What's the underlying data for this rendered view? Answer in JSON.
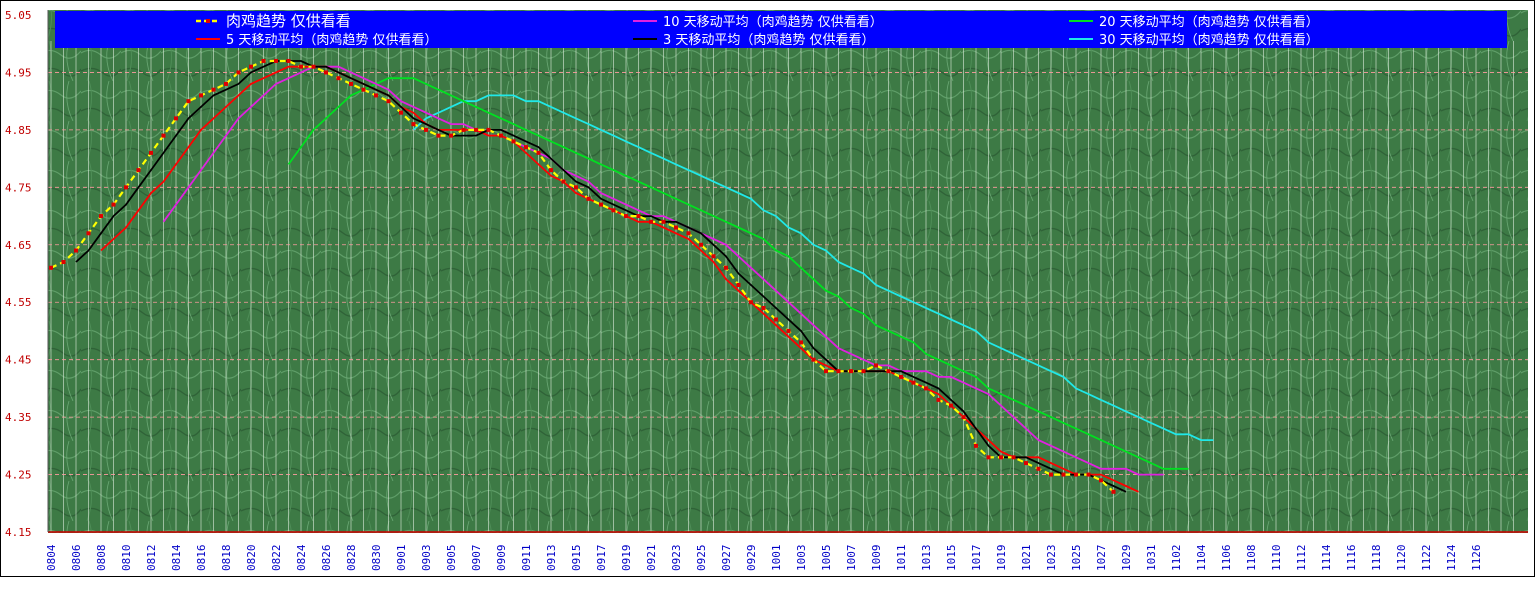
{
  "chart_data": {
    "type": "line",
    "ylim": [
      4.15,
      5.05
    ],
    "y_ticks": [
      "5.05",
      "4.95",
      "4.85",
      "4.75",
      "4.65",
      "4.55",
      "4.45",
      "4.35",
      "4.25",
      "4.15"
    ],
    "x_tick_labels": [
      "0804",
      "0806",
      "0808",
      "0810",
      "0812",
      "0814",
      "0816",
      "0818",
      "0820",
      "0822",
      "0824",
      "0826",
      "0828",
      "0830",
      "0901",
      "0903",
      "0905",
      "0907",
      "0909",
      "0911",
      "0913",
      "0915",
      "0917",
      "0919",
      "0921",
      "0923",
      "0925",
      "0927",
      "0929",
      "1001",
      "1003",
      "1005",
      "1007",
      "1009",
      "1011",
      "1013",
      "1015",
      "1017",
      "1019",
      "1021",
      "1023",
      "1025",
      "1027",
      "1029",
      "1031",
      "1102",
      "1104",
      "1106",
      "1108",
      "1110",
      "1112",
      "1114",
      "1116",
      "1118",
      "1120",
      "1122",
      "1124",
      "1126"
    ],
    "grid": true,
    "legend_position": "top",
    "series": [
      {
        "name": "肉鸡趋势 仅供看看",
        "color": "#ffff00",
        "style": "dashed-markers",
        "x_start": 0,
        "values": [
          4.61,
          4.62,
          4.64,
          4.67,
          4.7,
          4.72,
          4.75,
          4.78,
          4.81,
          4.84,
          4.87,
          4.9,
          4.91,
          4.92,
          4.93,
          4.95,
          4.96,
          4.97,
          4.97,
          4.97,
          4.96,
          4.96,
          4.95,
          4.94,
          4.93,
          4.92,
          4.91,
          4.9,
          4.88,
          4.86,
          4.85,
          4.84,
          4.84,
          4.85,
          4.85,
          4.85,
          4.84,
          4.83,
          4.82,
          4.81,
          4.78,
          4.76,
          4.75,
          4.73,
          4.72,
          4.71,
          4.7,
          4.7,
          4.69,
          4.69,
          4.68,
          4.67,
          4.65,
          4.63,
          4.61,
          4.58,
          4.55,
          4.54,
          4.52,
          4.5,
          4.48,
          4.45,
          4.43,
          4.43,
          4.43,
          4.43,
          4.44,
          4.43,
          4.42,
          4.41,
          4.4,
          4.38,
          4.37,
          4.35,
          4.3,
          4.28,
          4.28,
          4.28,
          4.27,
          4.26,
          4.25,
          4.25,
          4.25,
          4.25,
          4.24,
          4.22
        ]
      },
      {
        "name": "3 天移动平均（肉鸡趋势 仅供看看）",
        "color": "#000000",
        "style": "solid",
        "x_start": 2,
        "values": [
          4.62,
          4.64,
          4.67,
          4.7,
          4.72,
          4.75,
          4.78,
          4.81,
          4.84,
          4.87,
          4.89,
          4.91,
          4.92,
          4.93,
          4.95,
          4.96,
          4.97,
          4.97,
          4.97,
          4.96,
          4.96,
          4.95,
          4.94,
          4.93,
          4.92,
          4.91,
          4.89,
          4.87,
          4.86,
          4.85,
          4.84,
          4.84,
          4.84,
          4.85,
          4.85,
          4.84,
          4.83,
          4.82,
          4.8,
          4.78,
          4.76,
          4.75,
          4.73,
          4.72,
          4.71,
          4.7,
          4.7,
          4.69,
          4.69,
          4.68,
          4.67,
          4.65,
          4.63,
          4.6,
          4.58,
          4.56,
          4.54,
          4.52,
          4.5,
          4.47,
          4.45,
          4.43,
          4.43,
          4.43,
          4.43,
          4.43,
          4.43,
          4.42,
          4.41,
          4.4,
          4.38,
          4.36,
          4.33,
          4.3,
          4.28,
          4.28,
          4.28,
          4.27,
          4.26,
          4.25,
          4.25,
          4.25,
          4.24,
          4.23,
          4.22
        ]
      },
      {
        "name": "5 天移动平均（肉鸡趋势 仅供看看）",
        "color": "#ff0000",
        "style": "solid",
        "x_start": 4,
        "values": [
          4.64,
          4.66,
          4.68,
          4.71,
          4.74,
          4.76,
          4.79,
          4.82,
          4.85,
          4.87,
          4.89,
          4.91,
          4.93,
          4.94,
          4.95,
          4.96,
          4.96,
          4.96,
          4.96,
          4.95,
          4.94,
          4.93,
          4.92,
          4.91,
          4.89,
          4.88,
          4.86,
          4.85,
          4.85,
          4.85,
          4.85,
          4.84,
          4.84,
          4.83,
          4.81,
          4.79,
          4.77,
          4.76,
          4.74,
          4.73,
          4.72,
          4.71,
          4.7,
          4.69,
          4.69,
          4.68,
          4.67,
          4.66,
          4.64,
          4.62,
          4.59,
          4.57,
          4.55,
          4.53,
          4.51,
          4.49,
          4.47,
          4.45,
          4.44,
          4.43,
          4.43,
          4.43,
          4.43,
          4.43,
          4.42,
          4.41,
          4.4,
          4.39,
          4.37,
          4.35,
          4.33,
          4.31,
          4.29,
          4.28,
          4.28,
          4.28,
          4.27,
          4.26,
          4.25,
          4.25,
          4.25,
          4.24,
          4.23,
          4.22
        ]
      },
      {
        "name": "10 天移动平均（肉鸡趋势 仅供看看）",
        "color": "#e020e0",
        "style": "solid",
        "x_start": 9,
        "values": [
          4.69,
          4.72,
          4.75,
          4.78,
          4.81,
          4.84,
          4.87,
          4.89,
          4.91,
          4.93,
          4.94,
          4.95,
          4.96,
          4.96,
          4.96,
          4.95,
          4.94,
          4.93,
          4.92,
          4.9,
          4.89,
          4.88,
          4.87,
          4.86,
          4.86,
          4.85,
          4.84,
          4.84,
          4.83,
          4.82,
          4.81,
          4.8,
          4.78,
          4.77,
          4.76,
          4.74,
          4.73,
          4.72,
          4.71,
          4.7,
          4.7,
          4.69,
          4.68,
          4.67,
          4.66,
          4.65,
          4.63,
          4.61,
          4.59,
          4.57,
          4.55,
          4.53,
          4.51,
          4.49,
          4.47,
          4.46,
          4.45,
          4.44,
          4.44,
          4.43,
          4.43,
          4.43,
          4.42,
          4.42,
          4.41,
          4.4,
          4.39,
          4.37,
          4.35,
          4.33,
          4.31,
          4.3,
          4.29,
          4.28,
          4.27,
          4.26,
          4.26,
          4.26,
          4.25,
          4.25,
          4.25
        ]
      },
      {
        "name": "20 天移动平均（肉鸡趋势 仅供看看）",
        "color": "#00e020",
        "style": "solid",
        "x_start": 19,
        "values": [
          4.79,
          4.82,
          4.85,
          4.87,
          4.89,
          4.91,
          4.92,
          4.93,
          4.94,
          4.94,
          4.94,
          4.93,
          4.92,
          4.91,
          4.9,
          4.89,
          4.88,
          4.87,
          4.86,
          4.85,
          4.84,
          4.83,
          4.82,
          4.81,
          4.8,
          4.79,
          4.78,
          4.77,
          4.76,
          4.75,
          4.74,
          4.73,
          4.72,
          4.71,
          4.7,
          4.69,
          4.68,
          4.67,
          4.66,
          4.64,
          4.63,
          4.61,
          4.59,
          4.57,
          4.56,
          4.54,
          4.53,
          4.51,
          4.5,
          4.49,
          4.48,
          4.46,
          4.45,
          4.44,
          4.43,
          4.42,
          4.4,
          4.39,
          4.38,
          4.37,
          4.36,
          4.35,
          4.34,
          4.33,
          4.32,
          4.31,
          4.3,
          4.29,
          4.28,
          4.27,
          4.26,
          4.26,
          4.26
        ]
      },
      {
        "name": "30 天移动平均（肉鸡趋势 仅供看看）",
        "color": "#20e8e8",
        "style": "solid",
        "x_start": 29,
        "values": [
          4.85,
          4.87,
          4.88,
          4.89,
          4.9,
          4.9,
          4.91,
          4.91,
          4.91,
          4.9,
          4.9,
          4.89,
          4.88,
          4.87,
          4.86,
          4.85,
          4.84,
          4.83,
          4.82,
          4.81,
          4.8,
          4.79,
          4.78,
          4.77,
          4.76,
          4.75,
          4.74,
          4.73,
          4.71,
          4.7,
          4.68,
          4.67,
          4.65,
          4.64,
          4.62,
          4.61,
          4.6,
          4.58,
          4.57,
          4.56,
          4.55,
          4.54,
          4.53,
          4.52,
          4.51,
          4.5,
          4.48,
          4.47,
          4.46,
          4.45,
          4.44,
          4.43,
          4.42,
          4.4,
          4.39,
          4.38,
          4.37,
          4.36,
          4.35,
          4.34,
          4.33,
          4.32,
          4.32,
          4.31,
          4.31
        ]
      }
    ]
  }
}
